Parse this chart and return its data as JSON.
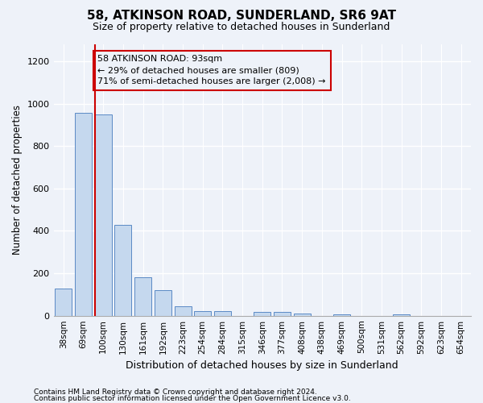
{
  "title1": "58, ATKINSON ROAD, SUNDERLAND, SR6 9AT",
  "title2": "Size of property relative to detached houses in Sunderland",
  "xlabel": "Distribution of detached houses by size in Sunderland",
  "ylabel": "Number of detached properties",
  "categories": [
    "38sqm",
    "69sqm",
    "100sqm",
    "130sqm",
    "161sqm",
    "192sqm",
    "223sqm",
    "254sqm",
    "284sqm",
    "315sqm",
    "346sqm",
    "377sqm",
    "408sqm",
    "438sqm",
    "469sqm",
    "500sqm",
    "531sqm",
    "562sqm",
    "592sqm",
    "623sqm",
    "654sqm"
  ],
  "values": [
    127,
    955,
    950,
    428,
    183,
    120,
    43,
    20,
    20,
    0,
    18,
    17,
    10,
    0,
    8,
    0,
    0,
    8,
    0,
    0,
    0
  ],
  "bar_color": "#c5d8ee",
  "bar_edge_color": "#5b8ac5",
  "highlight_index": 2,
  "highlight_color": "#cc0000",
  "annotation_line1": "58 ATKINSON ROAD: 93sqm",
  "annotation_line2": "← 29% of detached houses are smaller (809)",
  "annotation_line3": "71% of semi-detached houses are larger (2,008) →",
  "annotation_box_color": "#cc0000",
  "ylim": [
    0,
    1280
  ],
  "yticks": [
    0,
    200,
    400,
    600,
    800,
    1000,
    1200
  ],
  "footnote1": "Contains HM Land Registry data © Crown copyright and database right 2024.",
  "footnote2": "Contains public sector information licensed under the Open Government Licence v3.0.",
  "bg_color": "#eef2f9",
  "grid_color": "#ffffff"
}
